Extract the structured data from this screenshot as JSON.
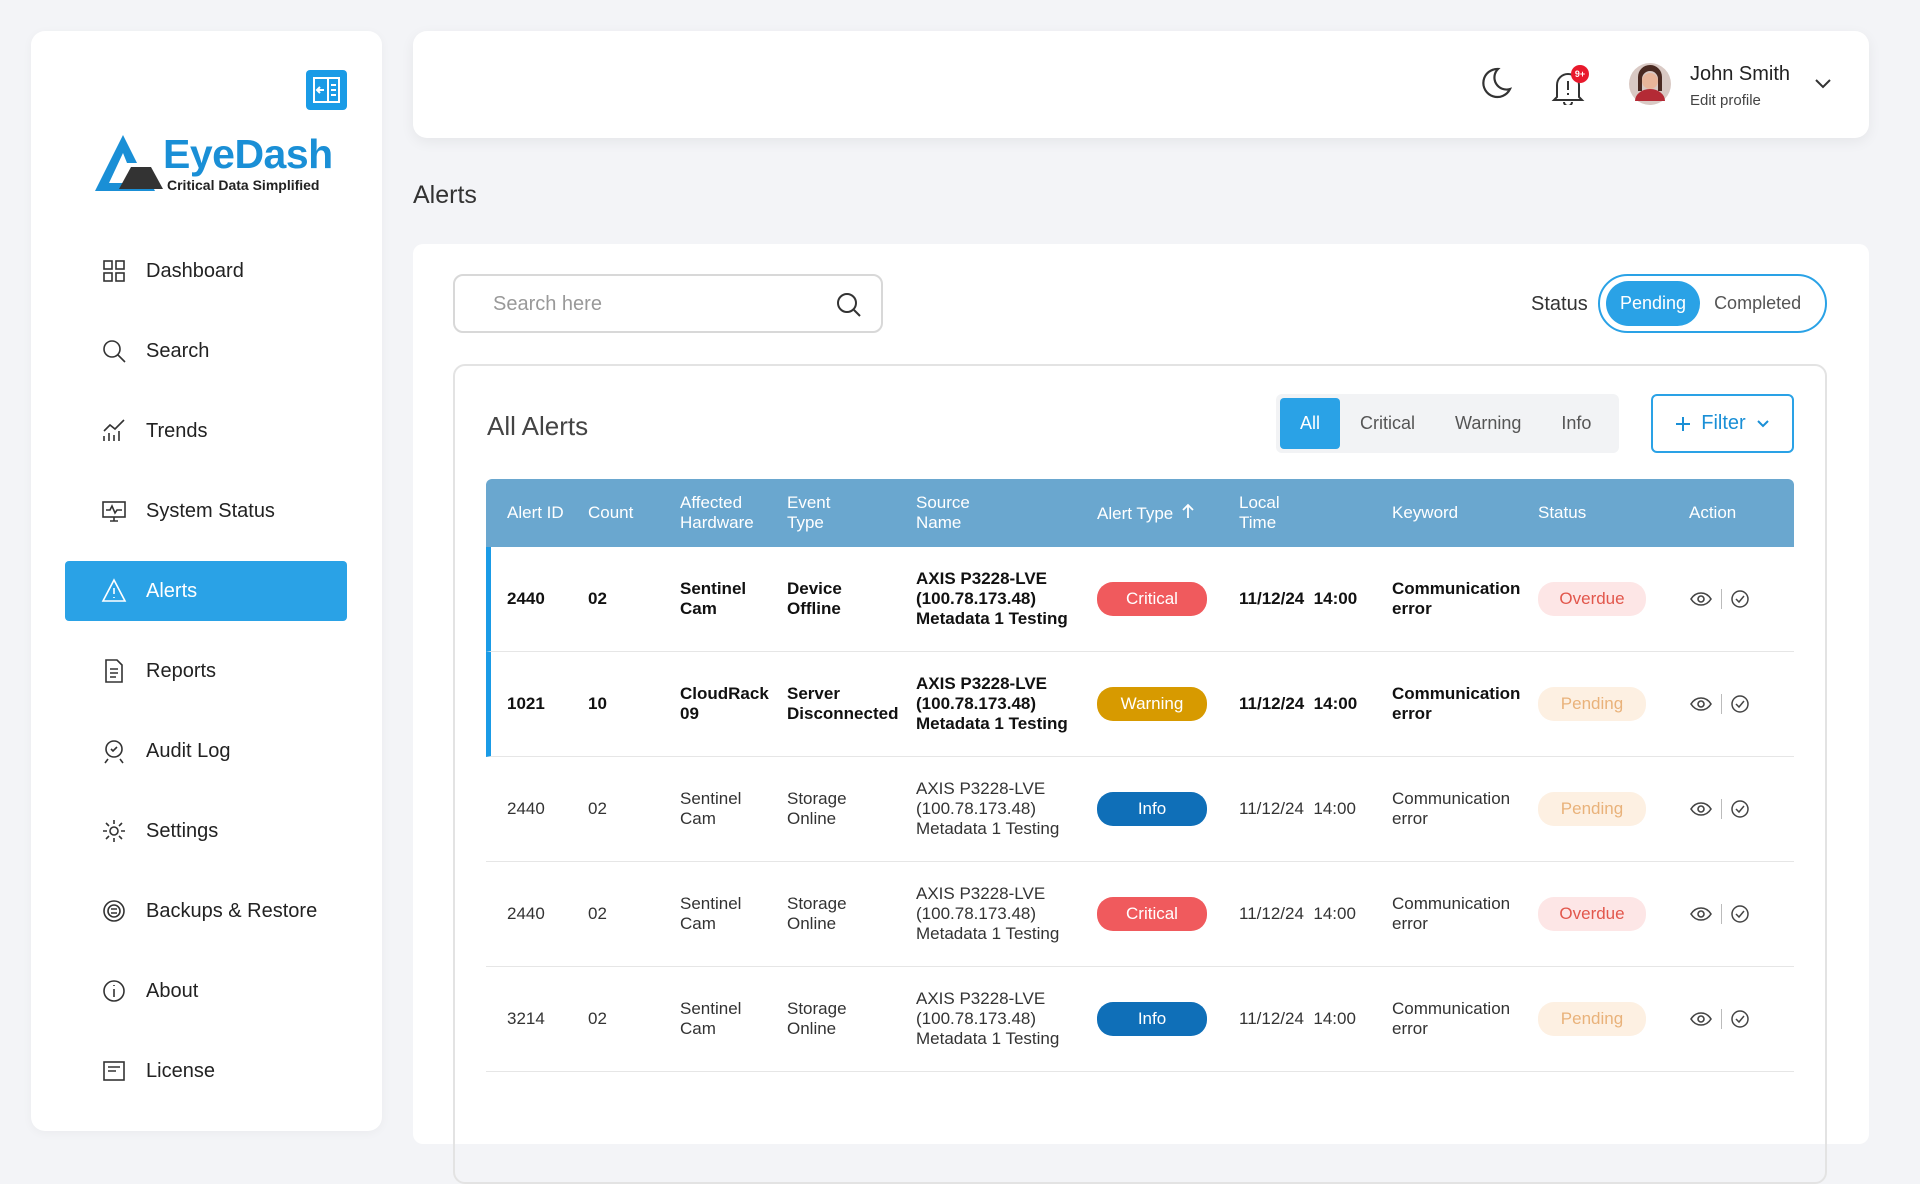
{
  "sidebar": {
    "brand": "EyeDash",
    "tagline": "Critical Data Simplified",
    "nav": [
      "Dashboard",
      "Search",
      "Trends",
      "System Status",
      "Alerts",
      "Reports",
      "Audit Log",
      "Settings",
      "Backups & Restore",
      "About",
      "License"
    ]
  },
  "header": {
    "notification_badge": "9+",
    "user_name": "John Smith",
    "user_link": "Edit profile"
  },
  "page_title": "Alerts",
  "toolbar": {
    "search_placeholder": "Search here",
    "status_label": "Status",
    "status_options": [
      "Pending",
      "Completed"
    ]
  },
  "alerts": {
    "title": "All Alerts",
    "tabs": [
      "All",
      "Critical",
      "Warning",
      "Info"
    ],
    "filter": "Filter",
    "columns": [
      "Alert ID",
      "Count",
      "Affected Hardware",
      "Event Type",
      "Source Name",
      "Alert Type",
      "Local Time",
      "Keyword",
      "Status",
      "Action"
    ],
    "rows": [
      {
        "id": "2440",
        "count": "02",
        "hardware": "Sentinel Cam",
        "event": "Device Offline",
        "source": [
          "AXIS P3228-LVE",
          "(100.78.173.48)",
          "Metadata 1 Testing"
        ],
        "alert_type": "Critical",
        "local_time": "11/12/24  14:00",
        "keyword": "Communication error",
        "status": "Overdue"
      },
      {
        "id": "1021",
        "count": "10",
        "hardware": "CloudRack 09",
        "event": "Server Disconnected",
        "source": [
          "AXIS P3228-LVE",
          "(100.78.173.48)",
          "Metadata 1 Testing"
        ],
        "alert_type": "Warning",
        "local_time": "11/12/24  14:00",
        "keyword": "Communication error",
        "status": "Pending"
      },
      {
        "id": "2440",
        "count": "02",
        "hardware": "Sentinel Cam",
        "event": "Storage Online",
        "source": [
          "AXIS P3228-LVE",
          "(100.78.173.48)",
          "Metadata 1 Testing"
        ],
        "alert_type": "Info",
        "local_time": "11/12/24  14:00",
        "keyword": "Communication error",
        "status": "Pending"
      },
      {
        "id": "2440",
        "count": "02",
        "hardware": "Sentinel Cam",
        "event": "Storage Online",
        "source": [
          "AXIS P3228-LVE",
          "(100.78.173.48)",
          "Metadata 1 Testing"
        ],
        "alert_type": "Critical",
        "local_time": "11/12/24  14:00",
        "keyword": "Communication error",
        "status": "Overdue"
      },
      {
        "id": "3214",
        "count": "02",
        "hardware": "Sentinel Cam",
        "event": "Storage Online",
        "source": [
          "AXIS P3228-LVE",
          "(100.78.173.48)",
          "Metadata 1 Testing"
        ],
        "alert_type": "Info",
        "local_time": "11/12/24  14:00",
        "keyword": "Communication error",
        "status": "Pending"
      }
    ]
  }
}
